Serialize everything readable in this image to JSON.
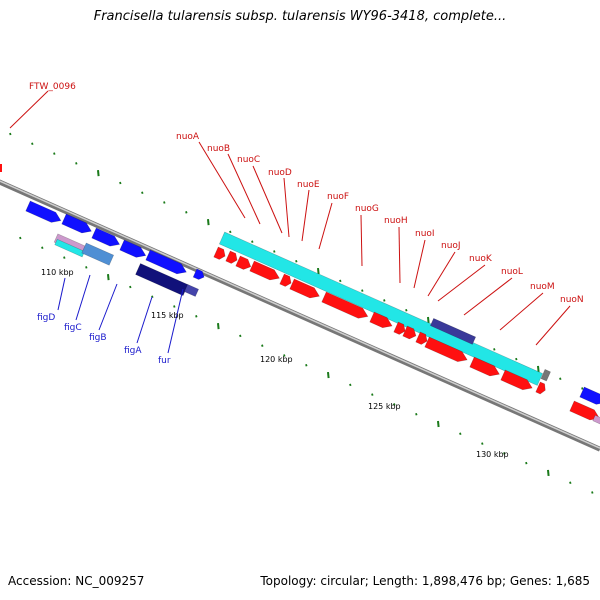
{
  "title": "Francisella tularensis subsp. tularensis WY96-3418, complete...",
  "footer": {
    "accession": "Accession: NC_009257",
    "topology": "Topology: circular; Length: 1,898,476 bp; Genes: 1,685"
  },
  "colors": {
    "forward_gene": "#1010ff",
    "reverse_gene": "#ff1010",
    "cds_band": "#22e6e6",
    "blue_label": "#1a1acc",
    "red_label": "#cc1111",
    "tick": "#1a7a1a",
    "backbone": "#888888"
  },
  "scale_labels": [
    "110 kbp",
    "115 kbp",
    "120 kbp",
    "125 kbp",
    "130 kbp"
  ],
  "gene_labels": {
    "top": [
      "FTW_0096",
      "nuoA",
      "nuoB",
      "nuoC",
      "nuoD",
      "nuoE",
      "nuoF",
      "nuoG",
      "nuoH",
      "nuoI",
      "nuoJ",
      "nuoK",
      "nuoL",
      "nuoM",
      "nuoN"
    ],
    "bottom": [
      "figD",
      "figC",
      "figB",
      "figA",
      "fur"
    ]
  }
}
